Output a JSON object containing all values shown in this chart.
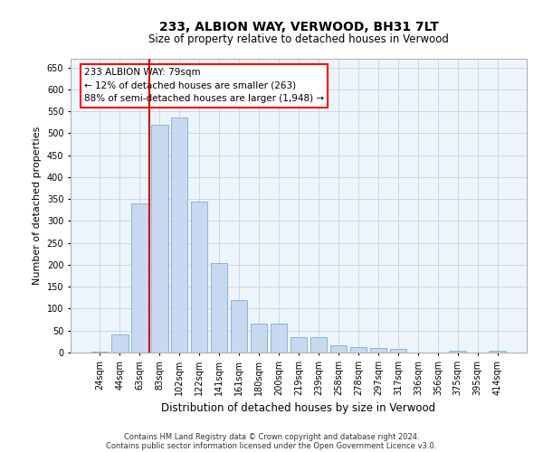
{
  "title": "233, ALBION WAY, VERWOOD, BH31 7LT",
  "subtitle": "Size of property relative to detached houses in Verwood",
  "xlabel": "Distribution of detached houses by size in Verwood",
  "ylabel": "Number of detached properties",
  "footer_line1": "Contains HM Land Registry data © Crown copyright and database right 2024.",
  "footer_line2": "Contains public sector information licensed under the Open Government Licence v3.0.",
  "annotation_title": "233 ALBION WAY: 79sqm",
  "annotation_line1": "← 12% of detached houses are smaller (263)",
  "annotation_line2": "88% of semi-detached houses are larger (1,948) →",
  "bar_categories": [
    "24sqm",
    "44sqm",
    "63sqm",
    "83sqm",
    "102sqm",
    "122sqm",
    "141sqm",
    "161sqm",
    "180sqm",
    "200sqm",
    "219sqm",
    "239sqm",
    "258sqm",
    "278sqm",
    "297sqm",
    "317sqm",
    "336sqm",
    "356sqm",
    "375sqm",
    "395sqm",
    "414sqm"
  ],
  "bar_values": [
    3,
    42,
    340,
    519,
    536,
    345,
    204,
    120,
    66,
    66,
    36,
    36,
    16,
    13,
    10,
    8,
    0,
    0,
    5,
    0,
    5
  ],
  "bar_color": "#c8d8f0",
  "bar_edge_color": "#7bafd4",
  "vline_color": "#cc0000",
  "vline_x": 2.5,
  "ylim": [
    0,
    670
  ],
  "yticks": [
    0,
    50,
    100,
    150,
    200,
    250,
    300,
    350,
    400,
    450,
    500,
    550,
    600,
    650
  ],
  "grid_color": "#c8d8e8",
  "background_color": "#eef4fb"
}
